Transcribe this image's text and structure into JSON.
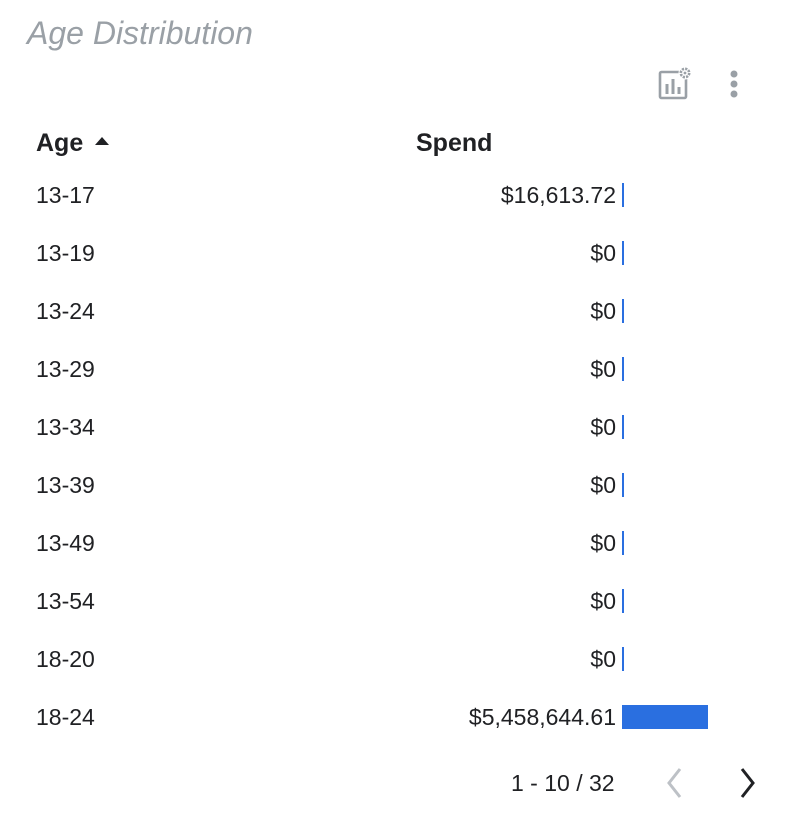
{
  "widget": {
    "title": "Age Distribution",
    "toolbar": {
      "chart_settings_icon": "chart-settings-icon",
      "more_icon": "more-vert-icon"
    }
  },
  "table": {
    "columns": {
      "age": "Age",
      "spend": "Spend"
    },
    "sort": {
      "column": "age",
      "direction": "ascending"
    },
    "bar_color": "#2a6fe0",
    "rows": [
      {
        "age": "13-17",
        "spend": "$16,613.72",
        "spend_value": 16613.72
      },
      {
        "age": "13-19",
        "spend": "$0",
        "spend_value": 0
      },
      {
        "age": "13-24",
        "spend": "$0",
        "spend_value": 0
      },
      {
        "age": "13-29",
        "spend": "$0",
        "spend_value": 0
      },
      {
        "age": "13-34",
        "spend": "$0",
        "spend_value": 0
      },
      {
        "age": "13-39",
        "spend": "$0",
        "spend_value": 0
      },
      {
        "age": "13-49",
        "spend": "$0",
        "spend_value": 0
      },
      {
        "age": "13-54",
        "spend": "$0",
        "spend_value": 0
      },
      {
        "age": "18-20",
        "spend": "$0",
        "spend_value": 0
      },
      {
        "age": "18-24",
        "spend": "$5,458,644.61",
        "spend_value": 5458644.61
      }
    ]
  },
  "pagination": {
    "label": "1 - 10 / 32",
    "prev_icon": "chevron-left-icon",
    "next_icon": "chevron-right-icon"
  }
}
